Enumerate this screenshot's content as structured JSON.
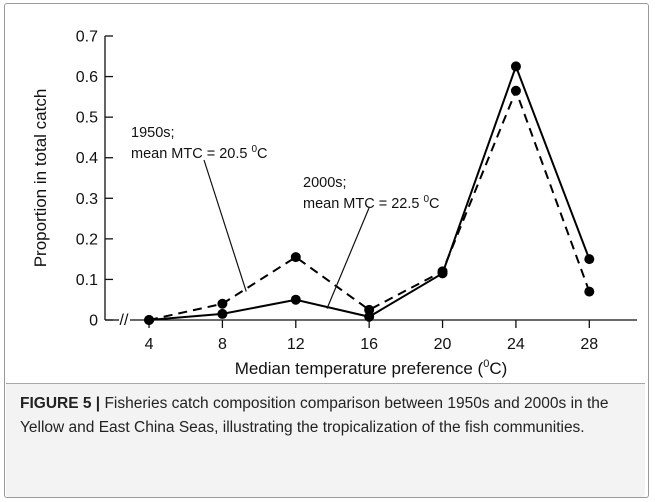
{
  "chart_data": {
    "type": "line",
    "xlabel": "Median temperature preference (0C)",
    "xlabel_parts": [
      "Median temperature preference (",
      "0",
      "C)"
    ],
    "ylabel": "Proportion in total catch",
    "x": [
      4,
      8,
      12,
      16,
      20,
      24,
      28
    ],
    "xticklabels": [
      "4",
      "8",
      "12",
      "16",
      "20",
      "24",
      "28"
    ],
    "xlim": [
      1.6,
      30.6
    ],
    "ylim": [
      0,
      0.7
    ],
    "yticks": [
      0,
      0.1,
      0.2,
      0.3,
      0.4,
      0.5,
      0.6,
      0.7
    ],
    "yticklabels": [
      "0",
      "0.1",
      "0.2",
      "0.3",
      "0.4",
      "0.5",
      "0.6",
      "0.7"
    ],
    "axis_break": "//",
    "grid": false,
    "series": [
      {
        "name": "1950s",
        "line_style": "dashed",
        "color": "#000000",
        "values": [
          0.0,
          0.04,
          0.155,
          0.025,
          0.12,
          0.565,
          0.07
        ]
      },
      {
        "name": "2000s",
        "line_style": "solid",
        "color": "#000000",
        "values": [
          0.0,
          0.015,
          0.05,
          0.008,
          0.115,
          0.625,
          0.15
        ]
      }
    ],
    "annotations": [
      {
        "series": "1950s",
        "line1": "1950s;",
        "line2_prefix": "mean MTC = 20.5 ",
        "superscript": "0",
        "line2_suffix": "C",
        "points_to": {
          "x": 9.3,
          "y": 0.07
        }
      },
      {
        "series": "2000s",
        "line1": "2000s;",
        "line2_prefix": "mean MTC = 22.5 ",
        "superscript": "0",
        "line2_suffix": "C",
        "points_to": {
          "x": 13.7,
          "y": 0.028
        }
      }
    ]
  },
  "caption": {
    "label": "FIGURE 5 |",
    "text": " Fisheries catch composition comparison between 1950s and 2000s in the Yellow and East China Seas, illustrating the tropicalization of the fish communities."
  }
}
